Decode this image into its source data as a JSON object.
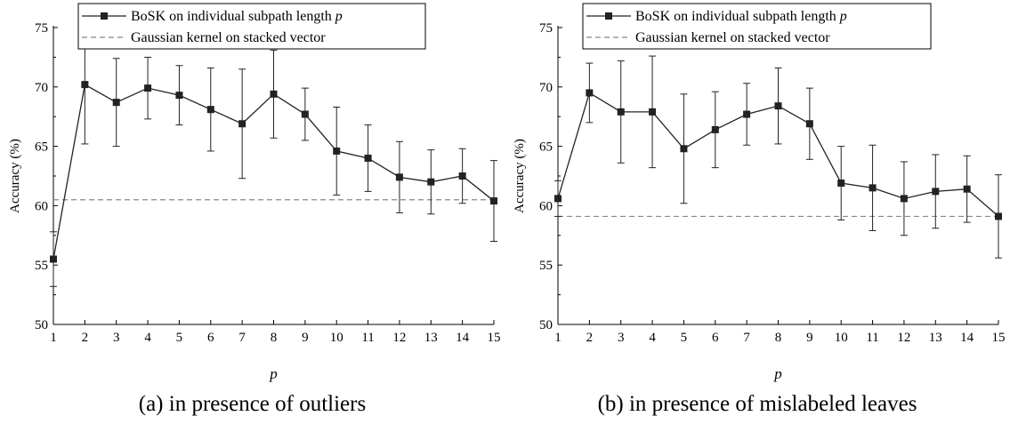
{
  "chart_data": [
    {
      "type": "line",
      "caption": "(a) in presence of outliers",
      "xlabel": "p",
      "ylabel": "Accuracy (%)",
      "xlim": [
        1,
        15
      ],
      "ylim": [
        50,
        75
      ],
      "xticks": [
        1,
        2,
        3,
        4,
        5,
        6,
        7,
        8,
        9,
        10,
        11,
        12,
        13,
        14,
        15
      ],
      "yticks": [
        50,
        55,
        60,
        65,
        70,
        75
      ],
      "legend_position": "top",
      "grid": false,
      "series": [
        {
          "name": "BoSK on individual subpath length p",
          "style": "solid-line-square-markers",
          "color": "#222222",
          "x": [
            1,
            2,
            3,
            4,
            5,
            6,
            7,
            8,
            9,
            10,
            11,
            12,
            13,
            14,
            15
          ],
          "y": [
            55.5,
            70.2,
            68.7,
            69.9,
            69.3,
            68.1,
            66.9,
            69.4,
            67.7,
            64.6,
            64.0,
            62.4,
            62.0,
            62.5,
            60.4
          ],
          "error": [
            2.3,
            5.0,
            3.7,
            2.6,
            2.5,
            3.5,
            4.6,
            3.7,
            2.2,
            3.7,
            2.8,
            3.0,
            2.7,
            2.3,
            3.4
          ]
        },
        {
          "name": "Gaussian kernel on stacked vector",
          "style": "dashed-line",
          "color": "#888888",
          "y": 60.5
        }
      ]
    },
    {
      "type": "line",
      "caption": "(b) in presence of mislabeled leaves",
      "xlabel": "p",
      "ylabel": "Accuracy (%)",
      "xlim": [
        1,
        15
      ],
      "ylim": [
        50,
        75
      ],
      "xticks": [
        1,
        2,
        3,
        4,
        5,
        6,
        7,
        8,
        9,
        10,
        11,
        12,
        13,
        14,
        15
      ],
      "yticks": [
        50,
        55,
        60,
        65,
        70,
        75
      ],
      "legend_position": "top",
      "grid": false,
      "series": [
        {
          "name": "BoSK on individual subpath length p",
          "style": "solid-line-square-markers",
          "color": "#222222",
          "x": [
            1,
            2,
            3,
            4,
            5,
            6,
            7,
            8,
            9,
            10,
            11,
            12,
            13,
            14,
            15
          ],
          "y": [
            60.6,
            69.5,
            67.9,
            67.9,
            64.8,
            66.4,
            67.7,
            68.4,
            66.9,
            61.9,
            61.5,
            60.6,
            61.2,
            61.4,
            59.1
          ],
          "error": [
            1.5,
            2.5,
            4.3,
            4.7,
            4.6,
            3.2,
            2.6,
            3.2,
            3.0,
            3.1,
            3.6,
            3.1,
            3.1,
            2.8,
            3.5
          ]
        },
        {
          "name": "Gaussian kernel on stacked vector",
          "style": "dashed-line",
          "color": "#888888",
          "y": 59.1
        }
      ]
    }
  ]
}
